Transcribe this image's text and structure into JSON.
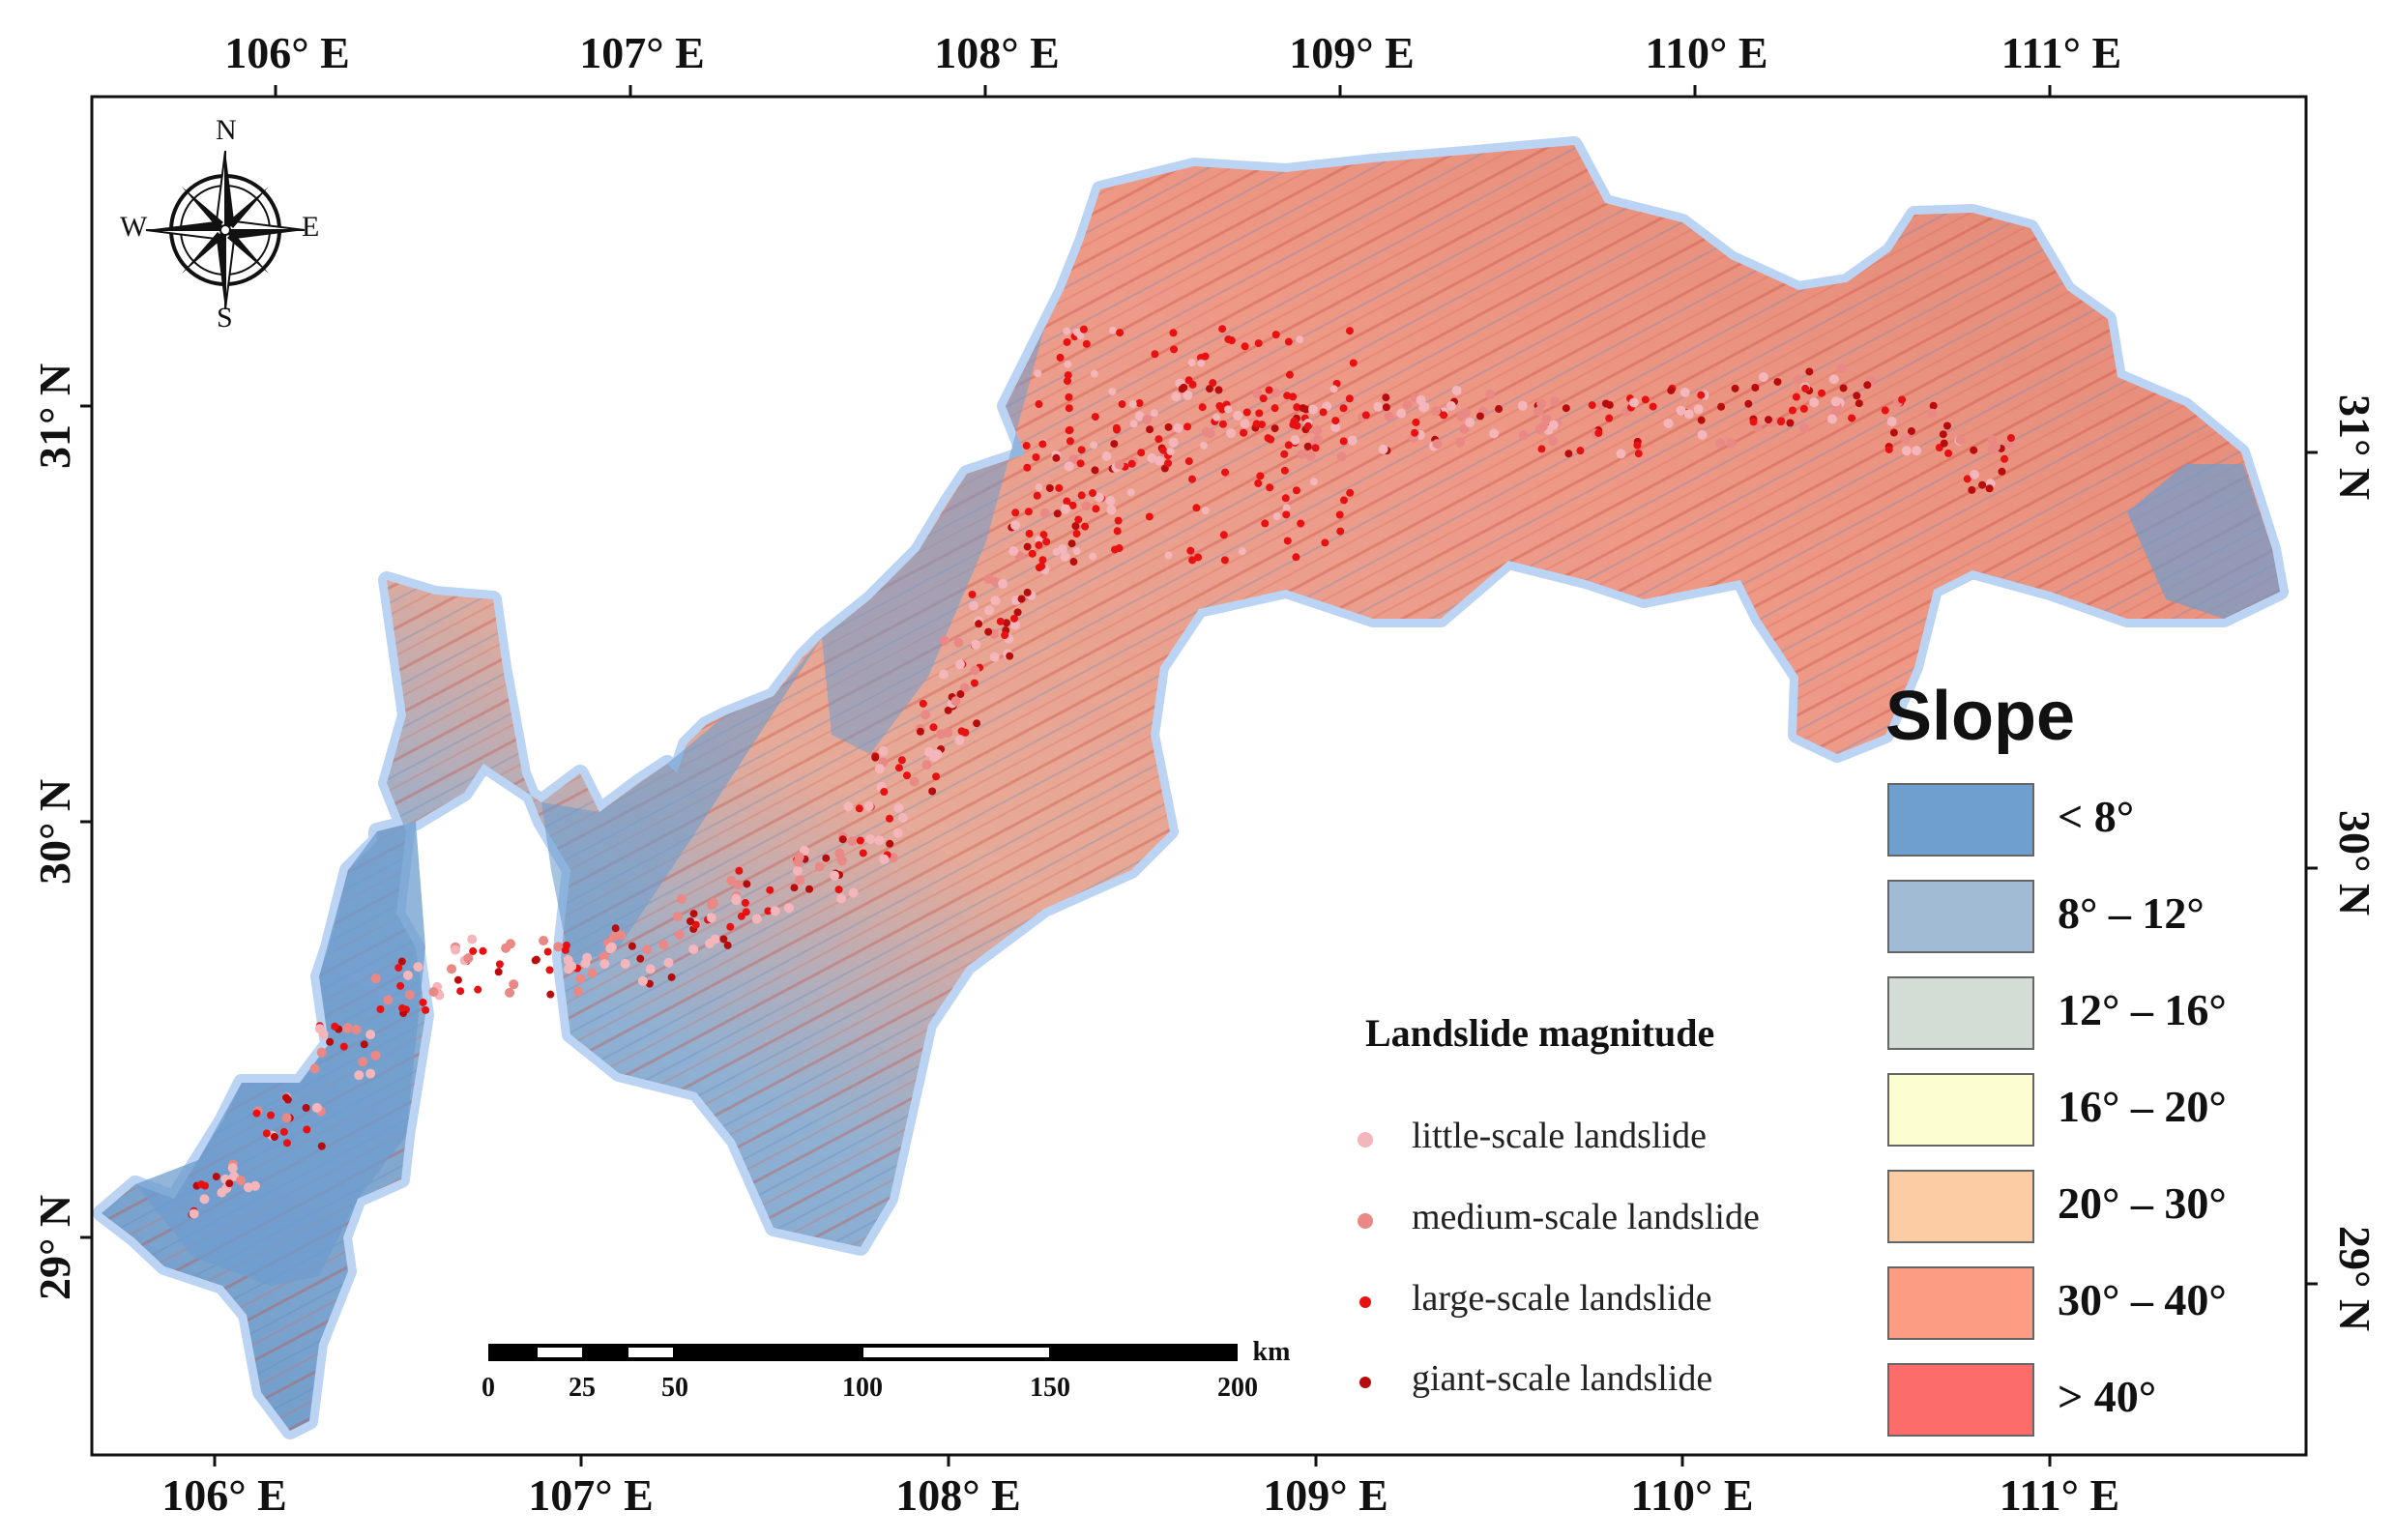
{
  "top_ticks": [
    "106° E",
    "107° E",
    "108° E",
    "109° E",
    "110° E",
    "111° E"
  ],
  "bottom_ticks": [
    "106° E",
    "107° E",
    "108° E",
    "109° E",
    "110° E",
    "111° E"
  ],
  "left_ticks": [
    "31° N",
    "30° N",
    "29° N"
  ],
  "right_ticks": [
    "31° N",
    "30° N",
    "29° N"
  ],
  "compass": {
    "north": "N",
    "south": "S",
    "east": "E",
    "west": "W"
  },
  "landslide_legend": {
    "title": "Landslide magnitude",
    "items": [
      {
        "label": "little-scale landslide",
        "color": "#f4b6bb"
      },
      {
        "label": "medium-scale landslide",
        "color": "#ea8886"
      },
      {
        "label": "large-scale landslide",
        "color": "#e81010"
      },
      {
        "label": "giant-scale landslide",
        "color": "#b80c0c"
      }
    ]
  },
  "slope_legend": {
    "title": "Slope",
    "classes": [
      {
        "label": "< 8°",
        "color": "#6e9fcf"
      },
      {
        "label": "8° – 12°",
        "color": "#a2bbd4"
      },
      {
        "label": "12° – 16°",
        "color": "#d4dcd6"
      },
      {
        "label": "16° – 20°",
        "color": "#fcfed2"
      },
      {
        "label": "20° – 30°",
        "color": "#fccca4"
      },
      {
        "label": "30° – 40°",
        "color": "#fc9c82"
      },
      {
        "label": "> 40°",
        "color": "#fc6c6a"
      }
    ]
  },
  "scale_bar": {
    "ticks": [
      "0",
      "25",
      "50",
      "100",
      "150",
      "200"
    ],
    "unit": "km"
  },
  "colors": {
    "region_halo": "#bcd4f4",
    "region_low": "#7aa6d3",
    "region_high": "#ef9c8a"
  }
}
